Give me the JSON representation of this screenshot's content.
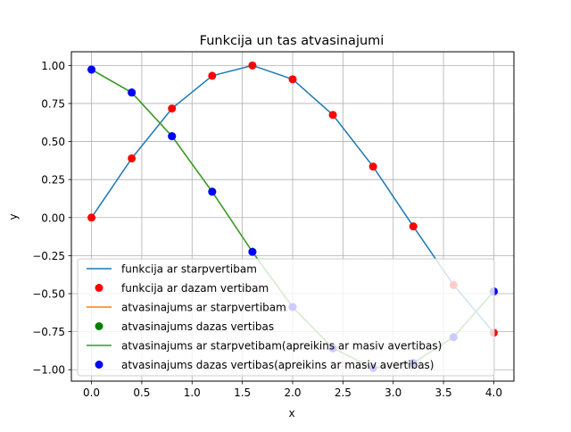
{
  "chart_data": {
    "type": "line",
    "title": "Funkcija un tas atvasinajumi",
    "xlabel": "x",
    "ylabel": "y",
    "xlim": [
      -0.2,
      4.2
    ],
    "ylim": [
      -1.075,
      1.09
    ],
    "grid": true,
    "legend_position": "lower-right",
    "x_ticks": [
      0.0,
      0.5,
      1.0,
      1.5,
      2.0,
      2.5,
      3.0,
      3.5,
      4.0
    ],
    "x_tick_labels": [
      "0.0",
      "0.5",
      "1.0",
      "1.5",
      "2.0",
      "2.5",
      "3.0",
      "3.5",
      "4.0"
    ],
    "y_ticks": [
      -1.0,
      -0.75,
      -0.5,
      -0.25,
      0.0,
      0.25,
      0.5,
      0.75,
      1.0
    ],
    "y_tick_labels": [
      "−1.00",
      "−0.75",
      "−0.50",
      "−0.25",
      "0.00",
      "0.25",
      "0.50",
      "0.75",
      "1.00"
    ],
    "series": [
      {
        "name": "funkcija ar starpvertibam",
        "kind": "line",
        "color": "#1f77b4",
        "x": [
          0.0,
          0.4,
          0.8,
          1.2,
          1.6,
          2.0,
          2.4,
          2.8,
          3.2,
          3.6,
          4.0
        ],
        "y": [
          0.0,
          0.389,
          0.717,
          0.932,
          1.0,
          0.909,
          0.675,
          0.335,
          -0.058,
          -0.443,
          -0.757
        ]
      },
      {
        "name": "funkcija ar dazam vertibam",
        "kind": "markers",
        "color": "#ff0000",
        "x": [
          0.0,
          0.4,
          0.8,
          1.2,
          1.6,
          2.0,
          2.4,
          2.8,
          3.2,
          3.6,
          4.0
        ],
        "y": [
          0.0,
          0.389,
          0.717,
          0.932,
          1.0,
          0.909,
          0.675,
          0.335,
          -0.058,
          -0.443,
          -0.757
        ]
      },
      {
        "name": "atvasinajums ar starpvertibam",
        "kind": "line",
        "color": "#ff7f0e",
        "x": [
          0.0,
          0.4,
          0.8,
          1.2,
          1.6,
          2.0,
          2.4,
          2.8,
          3.2,
          3.6,
          4.0
        ],
        "y": [
          0.973,
          0.822,
          0.535,
          0.17,
          -0.225,
          -0.588,
          -0.859,
          -0.989,
          -0.956,
          -0.786,
          -0.485
        ]
      },
      {
        "name": "atvasinajums dazas vertibas",
        "kind": "markers",
        "color": "#008000",
        "x": [
          0.0,
          0.4,
          0.8,
          1.2,
          1.6,
          2.0,
          2.4,
          2.8,
          3.2,
          3.6,
          4.0
        ],
        "y": [
          0.973,
          0.822,
          0.535,
          0.17,
          -0.225,
          -0.588,
          -0.859,
          -0.989,
          -0.956,
          -0.786,
          -0.485
        ]
      },
      {
        "name": "atvasinajums ar starpvetibam(apreikins ar masiv avertibas)",
        "kind": "line",
        "color": "#2ca02c",
        "x": [
          0.0,
          0.4,
          0.8,
          1.2,
          1.6,
          2.0,
          2.4,
          2.8,
          3.2,
          3.6,
          4.0
        ],
        "y": [
          0.973,
          0.822,
          0.535,
          0.17,
          -0.225,
          -0.588,
          -0.859,
          -0.989,
          -0.956,
          -0.786,
          -0.485
        ]
      },
      {
        "name": "atvasinajums dazas vertibas(apreikins ar masiv avertibas)",
        "kind": "markers",
        "color": "#0000ff",
        "x": [
          0.0,
          0.4,
          0.8,
          1.2,
          1.6,
          2.0,
          2.4,
          2.8,
          3.2,
          3.6,
          4.0
        ],
        "y": [
          0.973,
          0.822,
          0.535,
          0.17,
          -0.225,
          -0.588,
          -0.859,
          -0.989,
          -0.956,
          -0.786,
          -0.485
        ]
      }
    ]
  }
}
